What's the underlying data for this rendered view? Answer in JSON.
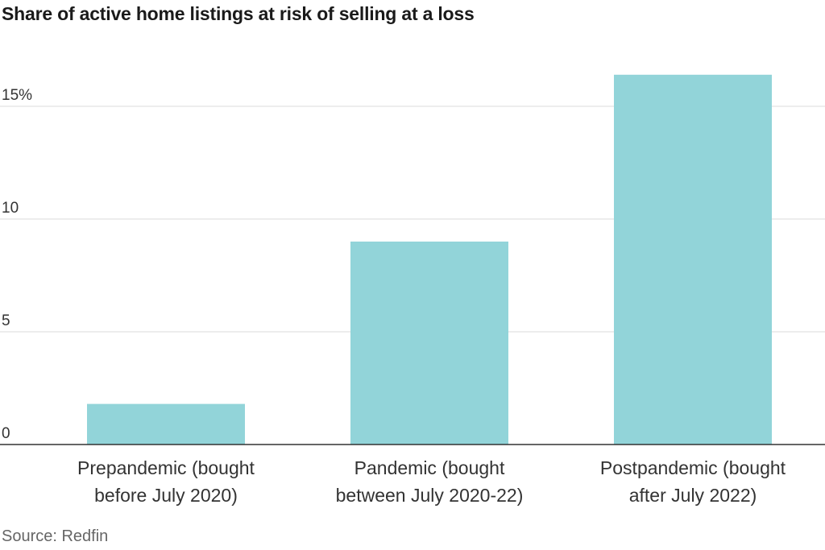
{
  "chart_data": {
    "type": "bar",
    "title": "Share of active home listings at risk of selling at a loss",
    "categories": [
      [
        "Prepandemic (bought",
        "before July 2020)"
      ],
      [
        "Pandemic (bought",
        "between July 2020-22)"
      ],
      [
        "Postpandemic (bought",
        "after July 2022)"
      ]
    ],
    "values": [
      1.8,
      9.0,
      16.4
    ],
    "ylim": [
      0,
      15
    ],
    "yticks": [
      {
        "value": 0,
        "label": "0"
      },
      {
        "value": 5,
        "label": "5"
      },
      {
        "value": 10,
        "label": "10"
      },
      {
        "value": 15,
        "label": "15%"
      }
    ],
    "xlabel": "",
    "ylabel": "",
    "grid": true,
    "colors": {
      "bar": "#92d4d9",
      "grid": "#e2e2e2",
      "axis": "#333333"
    }
  },
  "source": "Source: Redfin"
}
